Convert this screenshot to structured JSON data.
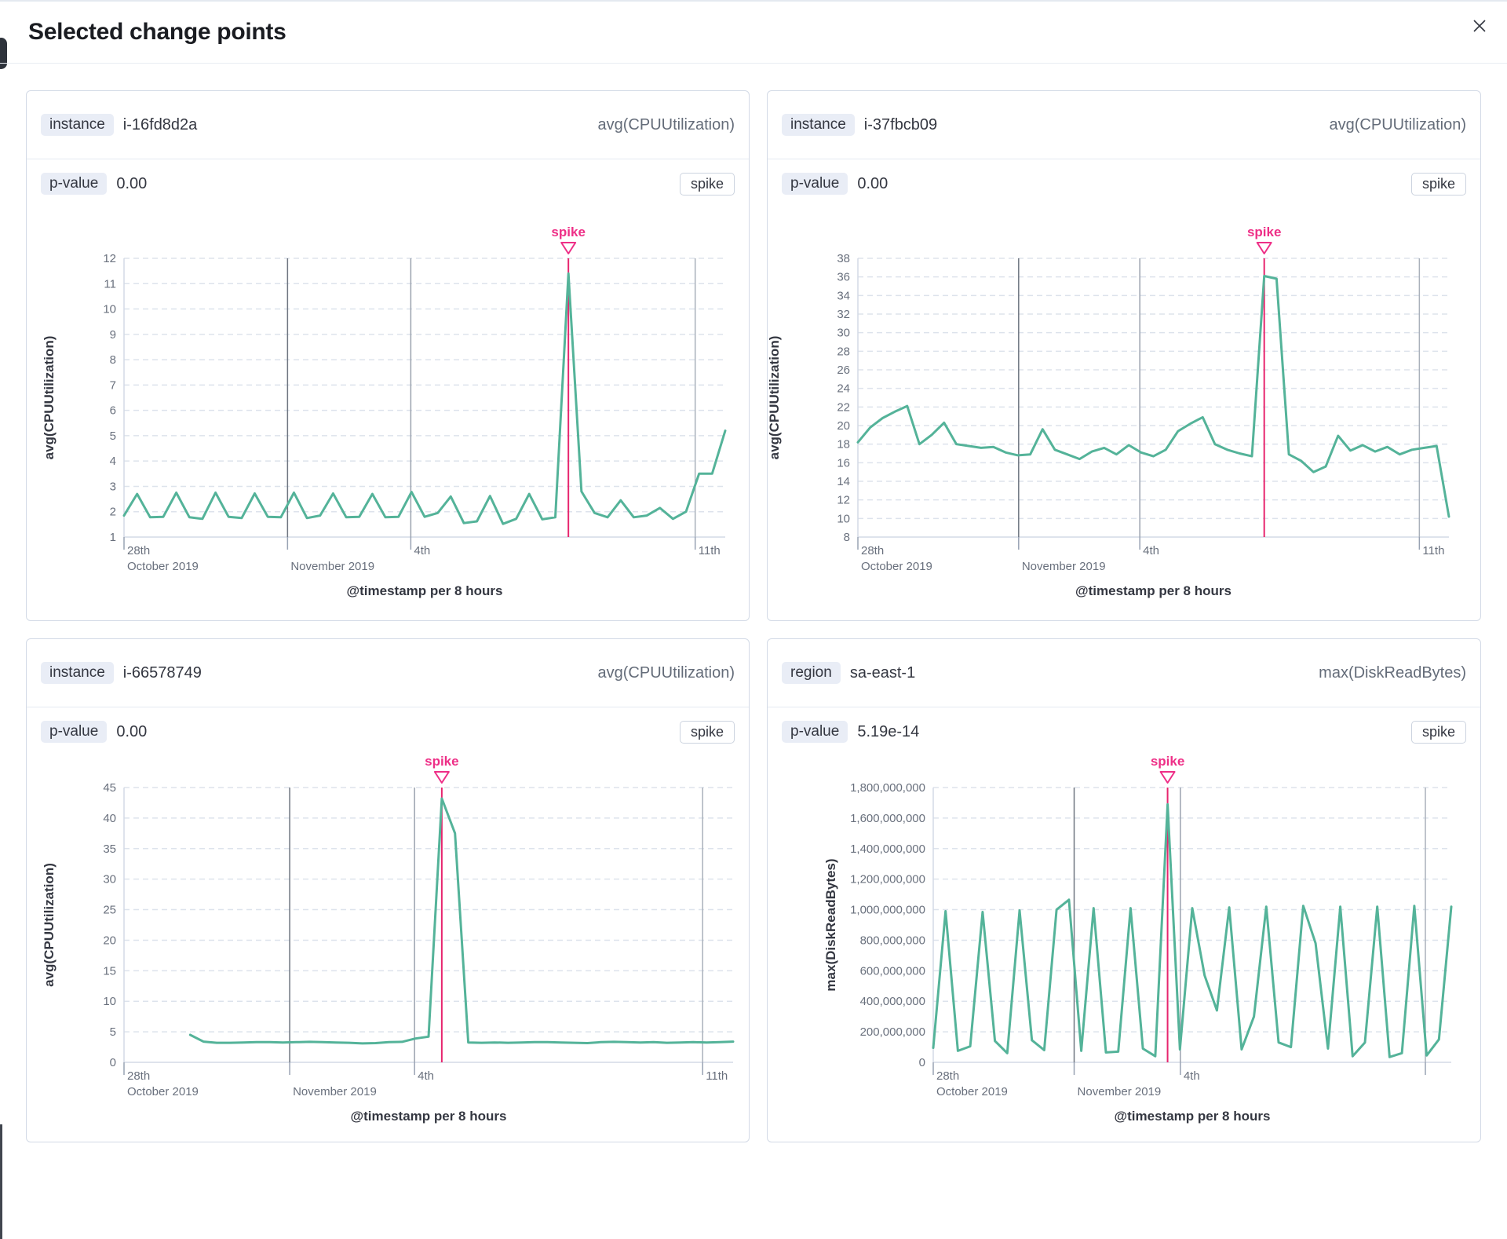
{
  "modal": {
    "title": "Selected change points"
  },
  "colors": {
    "line": "#54b399",
    "annotation_line": "#e7256e",
    "annotation_label": "#ee2f87",
    "grid_dash": "#dde3ec",
    "axis": "#d3dae6",
    "vline_dark": "#6e7580",
    "vline_med": "#9aa2ae",
    "vline_light": "#aab1bb",
    "tick": "#98a2b3",
    "tick_text": "#69707d",
    "axis_title_text": "#343741"
  },
  "cards": [
    {
      "key_label": "instance",
      "key_value": "i-16fd8d2a",
      "metric": "avg(CPUUtilization)",
      "p_label": "p-value",
      "p_value": "0.00",
      "type_badge": "spike"
    },
    {
      "key_label": "instance",
      "key_value": "i-37fbcb09",
      "metric": "avg(CPUUtilization)",
      "p_label": "p-value",
      "p_value": "0.00",
      "type_badge": "spike"
    },
    {
      "key_label": "instance",
      "key_value": "i-66578749",
      "metric": "avg(CPUUtilization)",
      "p_label": "p-value",
      "p_value": "0.00",
      "type_badge": "spike"
    },
    {
      "key_label": "region",
      "key_value": "sa-east-1",
      "metric": "max(DiskReadBytes)",
      "p_label": "p-value",
      "p_value": "5.19e-14",
      "type_badge": "spike"
    }
  ],
  "chart_data": [
    {
      "type": "line",
      "ylabel": "avg(CPUUtilization)",
      "xlabel": "@timestamp per 8 hours",
      "ymin": 1,
      "ymax": 12,
      "yticks": [
        1,
        2,
        3,
        4,
        5,
        6,
        7,
        8,
        9,
        10,
        11,
        12
      ],
      "xticks": [
        {
          "frac": 0,
          "l1": "28th",
          "l2": "October 2019",
          "em": "none"
        },
        {
          "frac": 0.272,
          "l1": "",
          "l2": "November 2019",
          "em": "dark"
        },
        {
          "frac": 0.477,
          "l1": "4th",
          "l2": "",
          "em": "med"
        },
        {
          "frac": 0.95,
          "l1": "11th",
          "l2": "",
          "em": "light"
        }
      ],
      "annotation": {
        "label": "spike",
        "index": 34
      },
      "values": [
        1.85,
        2.7,
        1.78,
        1.8,
        2.75,
        1.78,
        1.72,
        2.75,
        1.8,
        1.75,
        2.72,
        1.8,
        1.78,
        2.75,
        1.75,
        1.85,
        2.72,
        1.78,
        1.8,
        2.7,
        1.78,
        1.8,
        2.78,
        1.8,
        1.95,
        2.6,
        1.55,
        1.62,
        2.62,
        1.52,
        1.72,
        2.7,
        1.7,
        1.78,
        11.4,
        2.8,
        1.95,
        1.78,
        2.45,
        1.78,
        1.85,
        2.15,
        1.72,
        2.0,
        3.5,
        3.5,
        5.2
      ]
    },
    {
      "type": "line",
      "ylabel": "avg(CPUUtilization)",
      "xlabel": "@timestamp per 8 hours",
      "ymin": 8,
      "ymax": 38,
      "yticks": [
        8,
        10,
        12,
        14,
        16,
        18,
        20,
        22,
        24,
        26,
        28,
        30,
        32,
        34,
        36,
        38
      ],
      "xticks": [
        {
          "frac": 0,
          "l1": "28th",
          "l2": "October 2019",
          "em": "none"
        },
        {
          "frac": 0.272,
          "l1": "",
          "l2": "November 2019",
          "em": "dark"
        },
        {
          "frac": 0.477,
          "l1": "4th",
          "l2": "",
          "em": "med"
        },
        {
          "frac": 0.95,
          "l1": "11th",
          "l2": "",
          "em": "light"
        }
      ],
      "annotation": {
        "label": "spike",
        "index": 33
      },
      "values": [
        18.2,
        19.8,
        20.8,
        21.5,
        22.1,
        18.0,
        19.0,
        20.3,
        18.0,
        17.8,
        17.6,
        17.7,
        17.1,
        16.8,
        16.9,
        19.6,
        17.4,
        16.9,
        16.4,
        17.2,
        17.6,
        16.9,
        17.9,
        17.1,
        16.7,
        17.4,
        19.4,
        20.2,
        20.9,
        18.0,
        17.4,
        17.0,
        16.7,
        36.1,
        35.8,
        16.9,
        16.2,
        15.0,
        15.6,
        18.9,
        17.3,
        17.9,
        17.2,
        17.7,
        16.9,
        17.4,
        17.6,
        17.8,
        10.2
      ]
    },
    {
      "type": "line",
      "ylabel": "avg(CPUUtilization)",
      "xlabel": "@timestamp per 8 hours",
      "ymin": 0,
      "ymax": 45,
      "yticks": [
        0,
        5,
        10,
        15,
        20,
        25,
        30,
        35,
        40,
        45
      ],
      "xticks": [
        {
          "frac": 0,
          "l1": "28th",
          "l2": "October 2019",
          "em": "none"
        },
        {
          "frac": 0.272,
          "l1": "",
          "l2": "November 2019",
          "em": "dark"
        },
        {
          "frac": 0.477,
          "l1": "4th",
          "l2": "",
          "em": "med"
        },
        {
          "frac": 0.95,
          "l1": "11th",
          "l2": "",
          "em": "light"
        }
      ],
      "annotation": {
        "label": "spike",
        "index": 24
      },
      "values": [
        null,
        null,
        null,
        null,
        null,
        4.5,
        3.4,
        3.2,
        3.2,
        3.25,
        3.3,
        3.3,
        3.25,
        3.3,
        3.35,
        3.3,
        3.25,
        3.2,
        3.1,
        3.15,
        3.3,
        3.35,
        3.9,
        4.2,
        43.2,
        37.5,
        3.25,
        3.2,
        3.25,
        3.2,
        3.25,
        3.3,
        3.3,
        3.25,
        3.2,
        3.15,
        3.3,
        3.35,
        3.3,
        3.25,
        3.3,
        3.2,
        3.25,
        3.3,
        3.25,
        3.3,
        3.4
      ]
    },
    {
      "type": "line",
      "ylabel": "max(DiskReadBytes)",
      "xlabel": "@timestamp per 8 hours",
      "ymin": 0,
      "ymax": 1800000000,
      "yticks": [
        0,
        200000000,
        400000000,
        600000000,
        800000000,
        1000000000,
        1200000000,
        1400000000,
        1600000000,
        1800000000
      ],
      "xticks": [
        {
          "frac": 0,
          "l1": "28th",
          "l2": "October 2019",
          "em": "none"
        },
        {
          "frac": 0.272,
          "l1": "",
          "l2": "November 2019",
          "em": "dark"
        },
        {
          "frac": 0.477,
          "l1": "4th",
          "l2": "",
          "em": "med"
        },
        {
          "frac": 0.95,
          "l1": "",
          "l2": "",
          "em": "light"
        }
      ],
      "annotation": {
        "label": "spike",
        "index": 19
      },
      "values": [
        95000000,
        990000000,
        75000000,
        105000000,
        985000000,
        140000000,
        60000000,
        995000000,
        145000000,
        80000000,
        1000000000,
        1065000000,
        75000000,
        1010000000,
        65000000,
        70000000,
        1010000000,
        90000000,
        40000000,
        1690000000,
        85000000,
        1010000000,
        570000000,
        340000000,
        1015000000,
        85000000,
        300000000,
        1020000000,
        130000000,
        100000000,
        1025000000,
        780000000,
        90000000,
        1020000000,
        40000000,
        130000000,
        1020000000,
        35000000,
        60000000,
        1025000000,
        45000000,
        150000000,
        1020000000
      ]
    }
  ]
}
